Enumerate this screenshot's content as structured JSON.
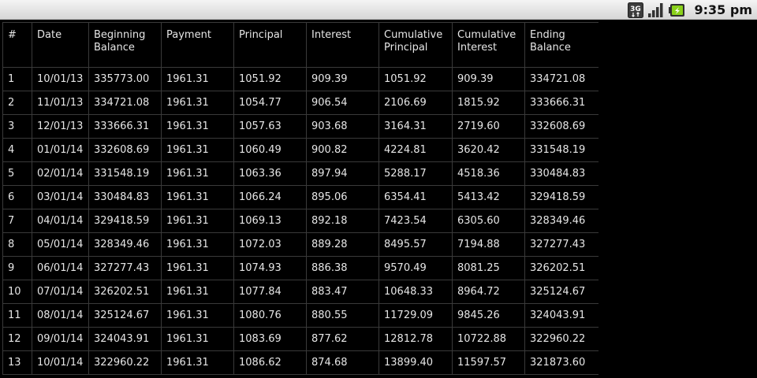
{
  "status_bar": {
    "network_label": "3G",
    "time": "9:35 pm"
  },
  "table": {
    "headers": [
      "#",
      "Date",
      "Beginning Balance",
      "Payment",
      "Principal",
      "Interest",
      "Cumulative Principal",
      "Cumulative Interest",
      "Ending Balance"
    ],
    "rows": [
      [
        "1",
        "10/01/13",
        "335773.00",
        "1961.31",
        "1051.92",
        "909.39",
        "1051.92",
        "909.39",
        "334721.08"
      ],
      [
        "2",
        "11/01/13",
        "334721.08",
        "1961.31",
        "1054.77",
        "906.54",
        "2106.69",
        "1815.92",
        "333666.31"
      ],
      [
        "3",
        "12/01/13",
        "333666.31",
        "1961.31",
        "1057.63",
        "903.68",
        "3164.31",
        "2719.60",
        "332608.69"
      ],
      [
        "4",
        "01/01/14",
        "332608.69",
        "1961.31",
        "1060.49",
        "900.82",
        "4224.81",
        "3620.42",
        "331548.19"
      ],
      [
        "5",
        "02/01/14",
        "331548.19",
        "1961.31",
        "1063.36",
        "897.94",
        "5288.17",
        "4518.36",
        "330484.83"
      ],
      [
        "6",
        "03/01/14",
        "330484.83",
        "1961.31",
        "1066.24",
        "895.06",
        "6354.41",
        "5413.42",
        "329418.59"
      ],
      [
        "7",
        "04/01/14",
        "329418.59",
        "1961.31",
        "1069.13",
        "892.18",
        "7423.54",
        "6305.60",
        "328349.46"
      ],
      [
        "8",
        "05/01/14",
        "328349.46",
        "1961.31",
        "1072.03",
        "889.28",
        "8495.57",
        "7194.88",
        "327277.43"
      ],
      [
        "9",
        "06/01/14",
        "327277.43",
        "1961.31",
        "1074.93",
        "886.38",
        "9570.49",
        "8081.25",
        "326202.51"
      ],
      [
        "10",
        "07/01/14",
        "326202.51",
        "1961.31",
        "1077.84",
        "883.47",
        "10648.33",
        "8964.72",
        "325124.67"
      ],
      [
        "11",
        "08/01/14",
        "325124.67",
        "1961.31",
        "1080.76",
        "880.55",
        "11729.09",
        "9845.26",
        "324043.91"
      ],
      [
        "12",
        "09/01/14",
        "324043.91",
        "1961.31",
        "1083.69",
        "877.62",
        "12812.78",
        "10722.88",
        "322960.22"
      ],
      [
        "13",
        "10/01/14",
        "322960.22",
        "1961.31",
        "1086.62",
        "874.68",
        "13899.40",
        "11597.57",
        "321873.60"
      ]
    ]
  }
}
